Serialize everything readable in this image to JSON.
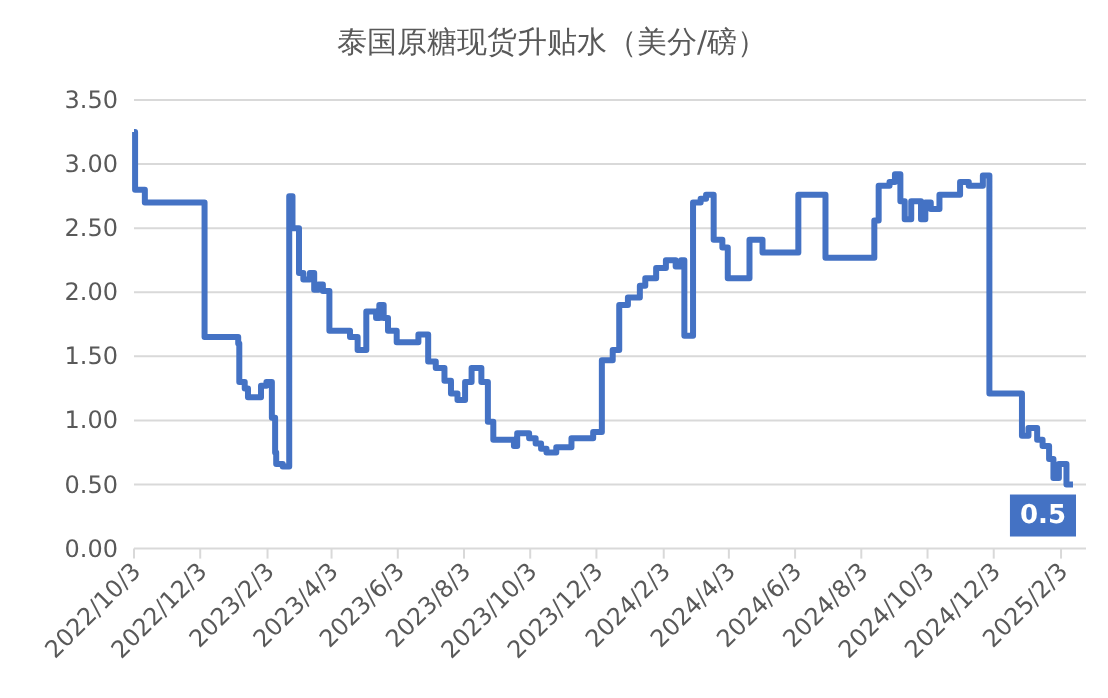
{
  "chart_data": {
    "type": "step",
    "title": "泰国原糖现货升贴水（美分/磅）",
    "x": [
      "2022-10-03",
      "2022-10-04",
      "2022-10-13",
      "2022-12-07",
      "2023-01-07",
      "2023-01-08",
      "2023-01-13",
      "2023-01-16",
      "2023-01-28",
      "2023-02-02",
      "2023-02-07",
      "2023-02-10",
      "2023-02-11",
      "2023-02-17",
      "2023-02-23",
      "2023-02-26",
      "2023-03-04",
      "2023-03-08",
      "2023-03-14",
      "2023-03-18",
      "2023-03-22",
      "2023-03-26",
      "2023-04-01",
      "2023-04-20",
      "2023-04-27",
      "2023-05-05",
      "2023-05-14",
      "2023-05-17",
      "2023-05-21",
      "2023-05-25",
      "2023-06-02",
      "2023-06-22",
      "2023-07-01",
      "2023-07-08",
      "2023-07-16",
      "2023-07-22",
      "2023-07-28",
      "2023-08-04",
      "2023-08-10",
      "2023-08-19",
      "2023-08-25",
      "2023-08-30",
      "2023-09-18",
      "2023-09-21",
      "2023-10-02",
      "2023-10-08",
      "2023-10-13",
      "2023-10-18",
      "2023-10-27",
      "2023-11-10",
      "2023-11-30",
      "2023-12-08",
      "2023-12-18",
      "2023-12-24",
      "2024-01-01",
      "2024-01-12",
      "2024-01-17",
      "2024-01-27",
      "2024-02-05",
      "2024-02-14",
      "2024-02-19",
      "2024-02-22",
      "2024-03-01",
      "2024-03-08",
      "2024-03-13",
      "2024-03-20",
      "2024-03-28",
      "2024-04-02",
      "2024-04-22",
      "2024-05-04",
      "2024-06-06",
      "2024-07-01",
      "2024-08-15",
      "2024-08-19",
      "2024-08-29",
      "2024-09-03",
      "2024-09-08",
      "2024-09-12",
      "2024-09-18",
      "2024-09-27",
      "2024-10-01",
      "2024-10-06",
      "2024-10-14",
      "2024-11-02",
      "2024-11-10",
      "2024-11-23",
      "2024-11-29",
      "2024-12-29",
      "2025-01-04",
      "2025-01-12",
      "2025-01-17",
      "2025-01-23",
      "2025-01-27",
      "2025-02-01",
      "2025-02-08",
      "2025-02-14"
    ],
    "series": [
      {
        "color": "#4472c4",
        "values": [
          3.25,
          2.8,
          2.7,
          1.65,
          1.6,
          1.3,
          1.25,
          1.18,
          1.27,
          1.3,
          1.02,
          0.75,
          0.66,
          0.64,
          2.75,
          2.5,
          2.15,
          2.1,
          2.15,
          2.02,
          2.06,
          2.01,
          1.7,
          1.65,
          1.55,
          1.85,
          1.8,
          1.9,
          1.8,
          1.7,
          1.61,
          1.67,
          1.46,
          1.41,
          1.31,
          1.21,
          1.16,
          1.3,
          1.41,
          1.3,
          0.99,
          0.85,
          0.8,
          0.9,
          0.86,
          0.82,
          0.78,
          0.75,
          0.79,
          0.86,
          0.91,
          1.47,
          1.55,
          1.9,
          1.96,
          2.05,
          2.11,
          2.19,
          2.25,
          2.2,
          2.25,
          1.66,
          2.7,
          2.73,
          2.76,
          2.41,
          2.35,
          2.11,
          2.41,
          2.31,
          2.76,
          2.27,
          2.56,
          2.83,
          2.86,
          2.92,
          2.71,
          2.57,
          2.71,
          2.57,
          2.7,
          2.65,
          2.76,
          2.86,
          2.83,
          2.91,
          1.21,
          0.88,
          0.94,
          0.85,
          0.8,
          0.7,
          0.55,
          0.66,
          0.5,
          0.5
        ]
      }
    ],
    "xlim": [
      "2022-10-03",
      "2025-02-26"
    ],
    "xticks": [
      {
        "value": "2022-10-03",
        "label": "2022/10/3"
      },
      {
        "value": "2022-12-03",
        "label": "2022/12/3"
      },
      {
        "value": "2023-02-03",
        "label": "2023/2/3"
      },
      {
        "value": "2023-04-03",
        "label": "2023/4/3"
      },
      {
        "value": "2023-06-03",
        "label": "2023/6/3"
      },
      {
        "value": "2023-08-03",
        "label": "2023/8/3"
      },
      {
        "value": "2023-10-03",
        "label": "2023/10/3"
      },
      {
        "value": "2023-12-03",
        "label": "2023/12/3"
      },
      {
        "value": "2024-02-03",
        "label": "2024/2/3"
      },
      {
        "value": "2024-04-03",
        "label": "2024/4/3"
      },
      {
        "value": "2024-06-03",
        "label": "2024/6/3"
      },
      {
        "value": "2024-08-03",
        "label": "2024/8/3"
      },
      {
        "value": "2024-10-03",
        "label": "2024/10/3"
      },
      {
        "value": "2024-12-03",
        "label": "2024/12/3"
      },
      {
        "value": "2025-02-03",
        "label": "2025/2/3"
      }
    ],
    "ylim": [
      0,
      3.5
    ],
    "yticks": [
      {
        "value": 0,
        "label": "0.00"
      },
      {
        "value": 0.5,
        "label": "0.50"
      },
      {
        "value": 1,
        "label": "1.00"
      },
      {
        "value": 1.5,
        "label": "1.50"
      },
      {
        "value": 2,
        "label": "2.00"
      },
      {
        "value": 2.5,
        "label": "2.50"
      },
      {
        "value": 3,
        "label": "3.00"
      },
      {
        "value": 3.5,
        "label": "3.50"
      }
    ],
    "grid": "y",
    "annotations": [
      {
        "text": "0.5",
        "x": "2025-02-14",
        "y": 0.5
      }
    ]
  }
}
